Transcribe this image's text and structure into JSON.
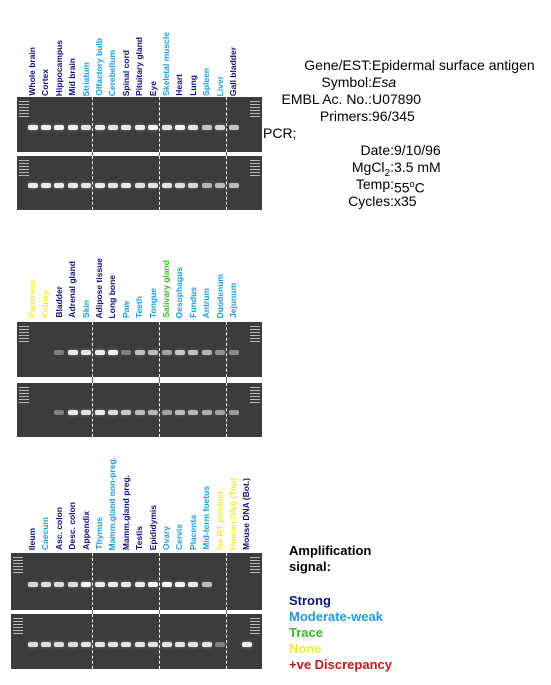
{
  "info": {
    "rows": [
      {
        "key": "Gene/EST:",
        "value": "Epidermal surface antigen",
        "italic": false
      },
      {
        "key": "Symbol:",
        "value": "Esa",
        "italic": true
      },
      {
        "key": "EMBL Ac. No.:",
        "value": "U07890",
        "italic": false
      },
      {
        "key": "Primers:",
        "value": "96/345",
        "italic": false
      }
    ],
    "pcr_label": "PCR;",
    "pcr_rows": [
      {
        "key": "Date:",
        "value": "9/10/96"
      },
      {
        "key": "MgCl",
        "sub": "2",
        "key_suffix": ":",
        "value": "3.5 mM"
      },
      {
        "key": "Temp:",
        "value": "55",
        "sup": "o",
        "value_suffix": "C"
      },
      {
        "key": "Cycles:",
        "value": "x35"
      }
    ]
  },
  "legend": {
    "title_line1": "Amplification",
    "title_line2": "signal:",
    "items": [
      {
        "label": "Strong",
        "color": "#10107a"
      },
      {
        "label": "Moderate-weak",
        "color": "#1a9edb"
      },
      {
        "label": "Trace",
        "color": "#3cb82a"
      },
      {
        "label": "None",
        "color": "#f2ea3a"
      },
      {
        "label": "+ve Discrepancy",
        "color": "#c41a1a"
      }
    ]
  },
  "colors": {
    "strong": "#10107a",
    "moderate": "#1a9edb",
    "trace": "#3cb82a",
    "none": "#f2ea3a",
    "discrepancy": "#c41a1a"
  },
  "panels": [
    {
      "lanes": [
        {
          "label": "Whole brain",
          "signal": "strong",
          "b1": 0.9,
          "b2": 0.85
        },
        {
          "label": "Cortex",
          "signal": "strong",
          "b1": 0.9,
          "b2": 0.85
        },
        {
          "label": "Hippocampus",
          "signal": "strong",
          "b1": 0.9,
          "b2": 0.85
        },
        {
          "label": "Mid brain",
          "signal": "strong",
          "b1": 0.9,
          "b2": 0.85
        },
        {
          "label": "Striatum",
          "signal": "moderate",
          "b1": 0.8,
          "b2": 0.8
        },
        {
          "label": "Olfactory bulb",
          "signal": "moderate",
          "b1": 0.85,
          "b2": 0.85
        },
        {
          "label": "Cerebellum",
          "signal": "moderate",
          "b1": 0.8,
          "b2": 0.8
        },
        {
          "label": "Spinal cord",
          "signal": "strong",
          "b1": 0.85,
          "b2": 0.85
        },
        {
          "label": "Pituitary gland",
          "signal": "strong",
          "b1": 0.85,
          "b2": 0.8
        },
        {
          "label": "Eye",
          "signal": "strong",
          "b1": 0.9,
          "b2": 0.8
        },
        {
          "label": "Skeletal muscle",
          "signal": "moderate",
          "b1": 0.8,
          "b2": 0.8
        },
        {
          "label": "Heart",
          "signal": "strong",
          "b1": 0.9,
          "b2": 0.75
        },
        {
          "label": "Lung",
          "signal": "strong",
          "b1": 0.8,
          "b2": 0.7
        },
        {
          "label": "Spleen",
          "signal": "moderate",
          "b1": 0.55,
          "b2": 0.45
        },
        {
          "label": "Liver",
          "signal": "moderate",
          "b1": 0.7,
          "b2": 0.5
        },
        {
          "label": "Gall bladder",
          "signal": "strong",
          "b1": 0.55,
          "b2": 0.5
        }
      ],
      "separators_after": [
        4,
        9,
        14
      ]
    },
    {
      "lanes": [
        {
          "label": "Pancreas",
          "signal": "none",
          "b1": 0,
          "b2": 0
        },
        {
          "label": "Kidney",
          "signal": "none",
          "b1": 0,
          "b2": 0
        },
        {
          "label": "Bladder",
          "signal": "strong",
          "b1": 0.05,
          "b2": 0.05
        },
        {
          "label": "Adrenal gland",
          "signal": "strong",
          "b1": 0.85,
          "b2": 0.85
        },
        {
          "label": "Skin",
          "signal": "moderate",
          "b1": 0.8,
          "b2": 0.75
        },
        {
          "label": "Adipose tissue",
          "signal": "strong",
          "b1": 0.85,
          "b2": 0.85
        },
        {
          "label": "Long bone",
          "signal": "strong",
          "b1": 0.9,
          "b2": 0.75
        },
        {
          "label": "Paw",
          "signal": "moderate",
          "b1": 0.05,
          "b2": 0.6
        },
        {
          "label": "Teeth",
          "signal": "moderate",
          "b1": 0.55,
          "b2": 0.5
        },
        {
          "label": "Tongue",
          "signal": "moderate",
          "b1": 0.5,
          "b2": 0.45
        },
        {
          "label": "Salivary gland",
          "signal": "trace",
          "b1": 0.3,
          "b2": 0.3
        },
        {
          "label": "Oesophagus",
          "signal": "moderate",
          "b1": 0.6,
          "b2": 0.5
        },
        {
          "label": "Fundus",
          "signal": "moderate",
          "b1": 0.55,
          "b2": 0.45
        },
        {
          "label": "Antrum",
          "signal": "moderate",
          "b1": 0.45,
          "b2": 0.4
        },
        {
          "label": "Duodenum",
          "signal": "moderate",
          "b1": 0.2,
          "b2": 0.3
        },
        {
          "label": "Jejunum",
          "signal": "moderate",
          "b1": 0.15,
          "b2": 0.25
        }
      ],
      "separators_after": [
        4,
        9,
        14
      ]
    },
    {
      "lanes": [
        {
          "label": "Ileum",
          "signal": "strong",
          "b1": 0.7,
          "b2": 0.75
        },
        {
          "label": "Caecum",
          "signal": "moderate",
          "b1": 0.75,
          "b2": 0.75
        },
        {
          "label": "Asc. colon",
          "signal": "strong",
          "b1": 0.75,
          "b2": 0.75
        },
        {
          "label": "Desc. colon",
          "signal": "strong",
          "b1": 0.75,
          "b2": 0.75
        },
        {
          "label": "Appendix",
          "signal": "strong",
          "b1": 0.95,
          "b2": 0.8
        },
        {
          "label": "Thymus",
          "signal": "moderate",
          "b1": 0.85,
          "b2": 0.8
        },
        {
          "label": "Mamm.gland non-preg.",
          "signal": "moderate",
          "b1": 0.85,
          "b2": 0.8
        },
        {
          "label": "Mamm.gland preg.",
          "signal": "strong",
          "b1": 0.85,
          "b2": 0.8
        },
        {
          "label": "Testis",
          "signal": "strong",
          "b1": 0.85,
          "b2": 0.8
        },
        {
          "label": "Epididymis",
          "signal": "strong",
          "b1": 0.95,
          "b2": 0.8
        },
        {
          "label": "Ovary",
          "signal": "moderate",
          "b1": 0.95,
          "b2": 0.8
        },
        {
          "label": "Cervix",
          "signal": "moderate",
          "b1": 0.9,
          "b2": 0.8
        },
        {
          "label": "Placenta",
          "signal": "moderate",
          "b1": 0.85,
          "b2": 0.8
        },
        {
          "label": "Mid-term foetus",
          "signal": "moderate",
          "b1": 0.5,
          "b2": 0.8
        },
        {
          "label": "No RT product",
          "signal": "none",
          "b1": 0,
          "b2": 0.05
        },
        {
          "label": "Human DNA (Top)",
          "signal": "none",
          "b1": 0,
          "b2": 0
        },
        {
          "label": "Mouse DNA (Bot.)",
          "signal": "strong",
          "b1": 0,
          "b2": 0.9
        }
      ],
      "separators_after": [
        4,
        9,
        14
      ]
    }
  ]
}
